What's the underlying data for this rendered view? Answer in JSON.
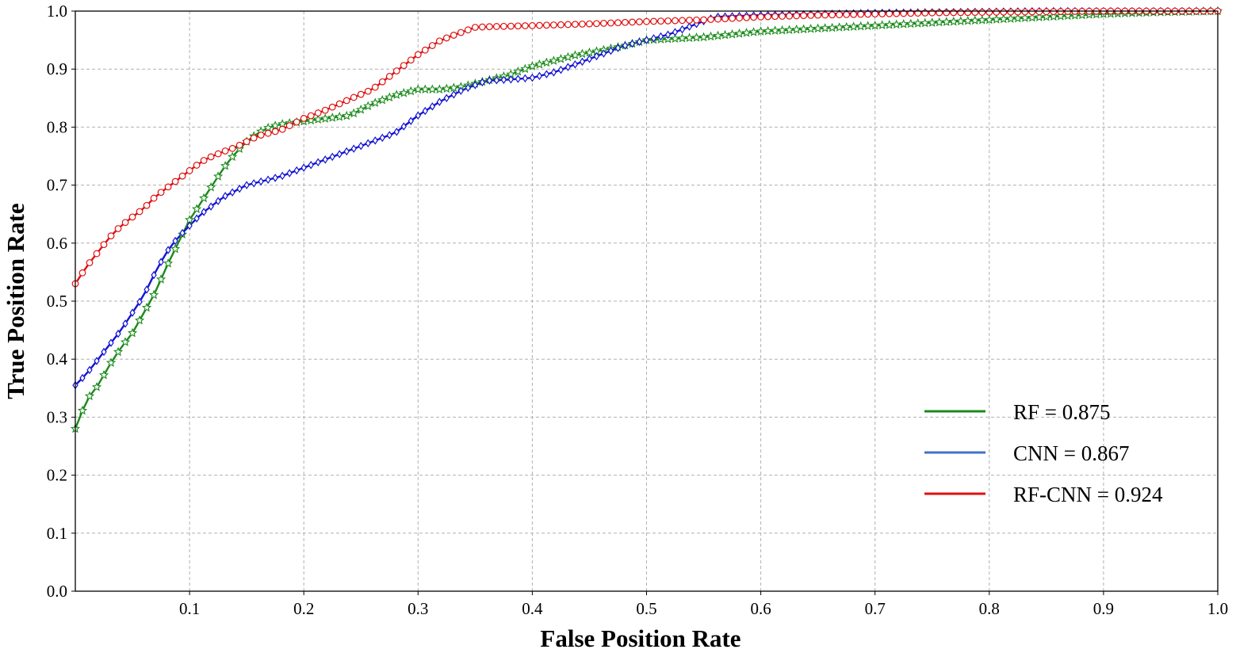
{
  "chart_data": {
    "type": "line",
    "title": "",
    "xlabel": "False Position Rate",
    "ylabel": "True Position Rate",
    "xlim": [
      0,
      1
    ],
    "ylim": [
      0,
      1
    ],
    "grid": true,
    "legend_position": "bottom-right",
    "x_ticks": [
      "0.1",
      "0.2",
      "0.3",
      "0.4",
      "0.5",
      "0.6",
      "0.7",
      "0.8",
      "0.9",
      "1.0"
    ],
    "y_ticks": [
      "0.0",
      "0.1",
      "0.2",
      "0.3",
      "0.4",
      "0.5",
      "0.6",
      "0.7",
      "0.8",
      "0.9",
      "1.0"
    ],
    "series": [
      {
        "name": "RF = 0.875",
        "color": "#1a8a1a",
        "legend_color": "#1a8a1a",
        "marker": "star",
        "x": [
          0,
          0.01,
          0.02,
          0.03,
          0.04,
          0.05,
          0.06,
          0.07,
          0.08,
          0.09,
          0.1,
          0.11,
          0.12,
          0.13,
          0.14,
          0.15,
          0.16,
          0.17,
          0.18,
          0.2,
          0.22,
          0.24,
          0.25,
          0.26,
          0.28,
          0.3,
          0.32,
          0.34,
          0.36,
          0.38,
          0.4,
          0.42,
          0.44,
          0.46,
          0.48,
          0.5,
          0.52,
          0.55,
          0.6,
          0.65,
          0.7,
          0.75,
          0.8,
          0.85,
          0.9,
          0.95,
          1.0
        ],
        "y": [
          0.28,
          0.33,
          0.355,
          0.39,
          0.42,
          0.445,
          0.48,
          0.515,
          0.56,
          0.6,
          0.64,
          0.67,
          0.7,
          0.73,
          0.755,
          0.775,
          0.79,
          0.8,
          0.805,
          0.81,
          0.815,
          0.82,
          0.83,
          0.84,
          0.855,
          0.865,
          0.865,
          0.87,
          0.88,
          0.89,
          0.905,
          0.915,
          0.925,
          0.932,
          0.94,
          0.95,
          0.952,
          0.955,
          0.965,
          0.97,
          0.975,
          0.98,
          0.985,
          0.99,
          0.995,
          0.998,
          1.0
        ]
      },
      {
        "name": "CNN = 0.867",
        "color": "#1414d2",
        "legend_color": "#4472c4",
        "marker": "diamond",
        "x": [
          0,
          0.01,
          0.02,
          0.03,
          0.04,
          0.05,
          0.06,
          0.07,
          0.08,
          0.09,
          0.1,
          0.11,
          0.12,
          0.13,
          0.14,
          0.15,
          0.16,
          0.18,
          0.2,
          0.22,
          0.24,
          0.26,
          0.28,
          0.3,
          0.32,
          0.34,
          0.36,
          0.38,
          0.4,
          0.42,
          0.44,
          0.46,
          0.48,
          0.5,
          0.52,
          0.54,
          0.56,
          0.6,
          0.65,
          0.7,
          0.75,
          0.8,
          0.85,
          0.9,
          0.95,
          1.0
        ],
        "y": [
          0.355,
          0.375,
          0.4,
          0.425,
          0.45,
          0.48,
          0.51,
          0.55,
          0.585,
          0.61,
          0.63,
          0.65,
          0.665,
          0.68,
          0.69,
          0.7,
          0.705,
          0.715,
          0.73,
          0.745,
          0.76,
          0.775,
          0.79,
          0.82,
          0.845,
          0.865,
          0.88,
          0.882,
          0.885,
          0.895,
          0.91,
          0.925,
          0.94,
          0.95,
          0.96,
          0.975,
          0.99,
          0.993,
          0.995,
          0.997,
          0.998,
          0.999,
          1.0,
          1.0,
          1.0,
          1.0
        ]
      },
      {
        "name": "RF-CNN = 0.924",
        "color": "#e01010",
        "legend_color": "#e01010",
        "marker": "circle",
        "x": [
          0,
          0.01,
          0.02,
          0.03,
          0.04,
          0.05,
          0.06,
          0.07,
          0.08,
          0.09,
          0.1,
          0.11,
          0.12,
          0.13,
          0.14,
          0.15,
          0.16,
          0.18,
          0.2,
          0.22,
          0.24,
          0.26,
          0.28,
          0.3,
          0.32,
          0.34,
          0.35,
          0.36,
          0.38,
          0.4,
          0.45,
          0.5,
          0.55,
          0.6,
          0.65,
          0.7,
          0.75,
          0.8,
          0.85,
          0.9,
          0.95,
          1.0
        ],
        "y": [
          0.53,
          0.56,
          0.585,
          0.61,
          0.63,
          0.645,
          0.66,
          0.68,
          0.695,
          0.71,
          0.725,
          0.74,
          0.75,
          0.758,
          0.765,
          0.775,
          0.785,
          0.795,
          0.815,
          0.83,
          0.848,
          0.865,
          0.895,
          0.925,
          0.95,
          0.965,
          0.972,
          0.973,
          0.974,
          0.975,
          0.978,
          0.982,
          0.985,
          0.99,
          0.993,
          0.995,
          0.997,
          0.998,
          0.999,
          1.0,
          1.0,
          1.0
        ]
      }
    ]
  }
}
